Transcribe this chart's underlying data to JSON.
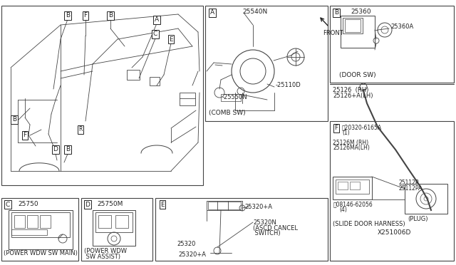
{
  "bg_color": "#ffffff",
  "fig_width": 6.4,
  "fig_height": 3.72,
  "dpi": 100,
  "text_color": "#222222",
  "line_color": "#444444",
  "labels": {
    "part_25540N": "25540N",
    "part_25110D": "-25110D",
    "part_25550N": "-25550N",
    "caption_A": "(COMB SW)",
    "part_25360": "25360",
    "part_25360A": "25360A",
    "caption_B": "(DOOR SW)",
    "part_25126": "25126  (RH)",
    "part_25126A": "25126+A(LH)",
    "part_25750": "25750",
    "caption_C": "(POWER WDW SW MAIN)",
    "part_25750M": "25750M",
    "caption_D1": "(POWER WDW",
    "caption_D2": " SW ASSIST)",
    "part_25320pA_top": "25320+A",
    "part_25320": "25320",
    "part_25320N": "25320N",
    "caption_E1": "(ASCD CANCEL",
    "caption_E2": " SWITCH)",
    "part_25320pA_bot": "25320+A",
    "bolt_F1": "Ⓒ20320-6165A",
    "bolt_F1n": "(1)",
    "part_25126M": "25126M (RH)",
    "part_25126MA": "25126MA(LH)",
    "bolt_F2": "Ⓑ08146-62056",
    "bolt_F2n": "(4)",
    "part_25112P": "25112P",
    "part_25112PA": "25112PA",
    "caption_plug": "(PLUG)",
    "caption_F": "(SLIDE DOOR HARNESS)",
    "ref_code": "X251006D",
    "front_label": "FRONT",
    "label_A": "A",
    "label_B": "B",
    "label_C": "C",
    "label_D": "D",
    "label_E": "E",
    "label_F": "F"
  }
}
